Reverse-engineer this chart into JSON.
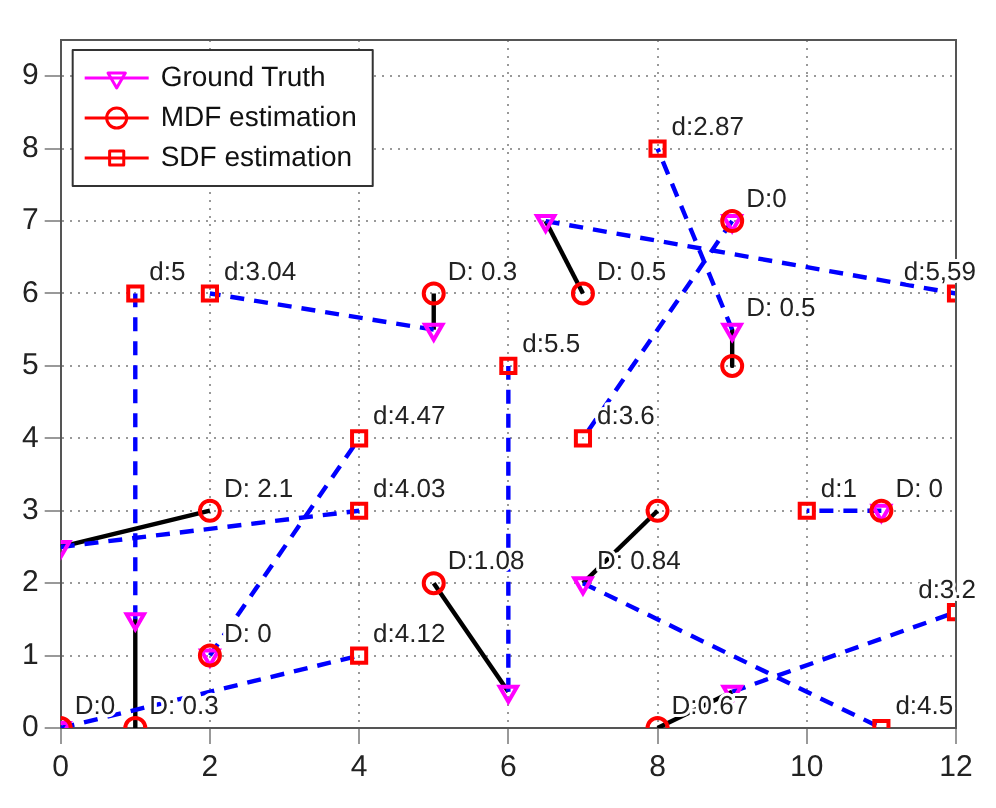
{
  "chart_data": {
    "type": "scatter",
    "xlim": [
      0,
      12
    ],
    "ylim": [
      0,
      9.5
    ],
    "xticks": [
      0,
      2,
      4,
      6,
      8,
      10,
      12
    ],
    "yticks": [
      0,
      1,
      2,
      3,
      4,
      5,
      6,
      7,
      8,
      9
    ],
    "grid": true,
    "legend": "top left",
    "series": [
      {
        "type": "line",
        "color": "#000000",
        "line_style": "solid",
        "marker": "none",
        "x": [
          0,
          2
        ],
        "values": [
          2.5,
          3
        ]
      },
      {
        "type": "line",
        "color": "#000000",
        "line_style": "solid",
        "marker": "none",
        "x": [
          1,
          1
        ],
        "values": [
          1.5,
          0
        ]
      },
      {
        "type": "line",
        "color": "#000000",
        "line_style": "solid",
        "marker": "none",
        "x": [
          5,
          5
        ],
        "values": [
          5.5,
          6
        ]
      },
      {
        "type": "line",
        "color": "#000000",
        "line_style": "solid",
        "marker": "none",
        "x": [
          6,
          5
        ],
        "values": [
          0.5,
          2
        ]
      },
      {
        "type": "line",
        "color": "#000000",
        "line_style": "solid",
        "marker": "none",
        "x": [
          6.5,
          7
        ],
        "values": [
          7,
          6
        ]
      },
      {
        "type": "line",
        "color": "#000000",
        "line_style": "solid",
        "marker": "none",
        "x": [
          9,
          9
        ],
        "values": [
          5.5,
          5
        ]
      },
      {
        "type": "line",
        "color": "#000000",
        "line_style": "solid",
        "marker": "none",
        "x": [
          7,
          8
        ],
        "values": [
          2,
          3
        ]
      },
      {
        "type": "line",
        "color": "#000000",
        "line_style": "solid",
        "marker": "none",
        "x": [
          9,
          8
        ],
        "values": [
          0.5,
          0
        ]
      },
      {
        "type": "line",
        "color": "#0000ff",
        "line_style": "dashed",
        "marker": "none",
        "x": [
          0,
          4
        ],
        "values": [
          2.5,
          3
        ]
      },
      {
        "type": "line",
        "color": "#0000ff",
        "line_style": "dashed",
        "marker": "none",
        "x": [
          1,
          1
        ],
        "values": [
          1.5,
          6
        ]
      },
      {
        "type": "line",
        "color": "#0000ff",
        "line_style": "dashed",
        "marker": "none",
        "x": [
          0,
          4
        ],
        "values": [
          0,
          1
        ]
      },
      {
        "type": "line",
        "color": "#0000ff",
        "line_style": "dashed",
        "marker": "none",
        "x": [
          2,
          4
        ],
        "values": [
          1,
          4
        ]
      },
      {
        "type": "line",
        "color": "#0000ff",
        "line_style": "dashed",
        "marker": "none",
        "x": [
          5,
          2
        ],
        "values": [
          5.5,
          6
        ]
      },
      {
        "type": "line",
        "color": "#0000ff",
        "line_style": "dashed",
        "marker": "none",
        "x": [
          6,
          6
        ],
        "values": [
          0.5,
          5
        ]
      },
      {
        "type": "line",
        "color": "#0000ff",
        "line_style": "dashed",
        "marker": "none",
        "x": [
          6.5,
          12
        ],
        "values": [
          7,
          6
        ]
      },
      {
        "type": "line",
        "color": "#0000ff",
        "line_style": "dashed",
        "marker": "none",
        "x": [
          9,
          7
        ],
        "values": [
          7,
          4
        ]
      },
      {
        "type": "line",
        "color": "#0000ff",
        "line_style": "dashed",
        "marker": "none",
        "x": [
          9,
          8
        ],
        "values": [
          5.5,
          8
        ]
      },
      {
        "type": "line",
        "color": "#0000ff",
        "line_style": "dashed",
        "marker": "none",
        "x": [
          7,
          11
        ],
        "values": [
          2,
          0
        ]
      },
      {
        "type": "line",
        "color": "#0000ff",
        "line_style": "dashed",
        "marker": "none",
        "x": [
          9,
          12
        ],
        "values": [
          0.5,
          1.6
        ]
      },
      {
        "type": "line",
        "color": "#0000ff",
        "line_style": "dashed",
        "marker": "none",
        "x": [
          11,
          10
        ],
        "values": [
          3,
          3
        ]
      },
      {
        "name": "Ground Truth",
        "color": "#ff00ff",
        "marker": "triangle",
        "x": [
          0,
          1,
          0,
          2,
          5,
          6,
          6.5,
          9,
          9,
          7,
          9,
          11
        ],
        "values": [
          2.5,
          1.5,
          0,
          1,
          5.5,
          0.5,
          7,
          7,
          5.5,
          2,
          0.5,
          3
        ]
      },
      {
        "name": "MDF estimation",
        "color": "#ff0000",
        "marker": "circle",
        "x": [
          2,
          1,
          0,
          2,
          5,
          5,
          7,
          9,
          9,
          8,
          8,
          11
        ],
        "values": [
          3,
          0,
          0,
          1,
          6,
          2,
          6,
          7,
          5,
          3,
          0,
          3
        ]
      },
      {
        "name": "SDF estimation",
        "color": "#ff0000",
        "marker": "square",
        "x": [
          4,
          1,
          4,
          4,
          2,
          6,
          12,
          7,
          8,
          11,
          12,
          10
        ],
        "values": [
          3,
          6,
          1,
          4,
          6,
          5,
          6,
          4,
          8,
          0,
          1.6,
          3
        ]
      }
    ],
    "annotations": [
      {
        "text": "D: 2.1",
        "x": 2,
        "y": 3
      },
      {
        "text": "D: 0.3",
        "x": 1,
        "y": 0
      },
      {
        "text": "D:0",
        "x": 0,
        "y": 0
      },
      {
        "text": "D: 0",
        "x": 2,
        "y": 1
      },
      {
        "text": "D: 0.3",
        "x": 5,
        "y": 6
      },
      {
        "text": "D:1.08",
        "x": 5,
        "y": 2
      },
      {
        "text": "D: 0.5",
        "x": 7,
        "y": 6
      },
      {
        "text": "D:0",
        "x": 9,
        "y": 7
      },
      {
        "text": "D: 0.5",
        "x": 9,
        "y": 5.5
      },
      {
        "text": "D: 0.84",
        "x": 7,
        "y": 2
      },
      {
        "text": "D:0.67",
        "x": 8,
        "y": 0
      },
      {
        "text": "D: 0",
        "x": 11,
        "y": 3
      },
      {
        "text": "d:4.03",
        "x": 4,
        "y": 3
      },
      {
        "text": "d:5",
        "x": 1,
        "y": 6
      },
      {
        "text": "d:4.12",
        "x": 4,
        "y": 1
      },
      {
        "text": "d:4.47",
        "x": 4,
        "y": 4
      },
      {
        "text": "d:3.04",
        "x": 2,
        "y": 6
      },
      {
        "text": "d:5.5",
        "x": 6,
        "y": 5
      },
      {
        "text": "d:5,59",
        "x": 12,
        "y": 6
      },
      {
        "text": "d:3.6",
        "x": 7,
        "y": 4
      },
      {
        "text": "d:2.87",
        "x": 8,
        "y": 8
      },
      {
        "text": "d:4.5",
        "x": 11,
        "y": 0
      },
      {
        "text": "d:3.2",
        "x": 12,
        "y": 1.6
      },
      {
        "text": "d:1",
        "x": 10,
        "y": 3
      }
    ]
  }
}
